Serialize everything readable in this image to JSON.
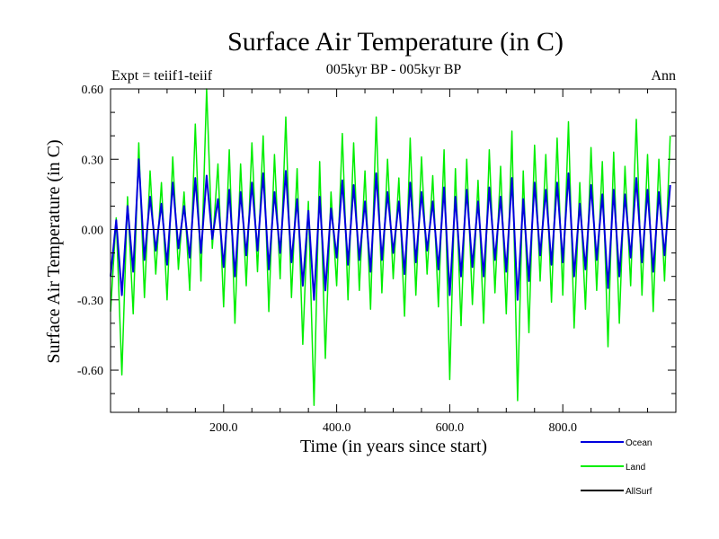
{
  "chart_data": {
    "type": "line",
    "title": "Surface Air Temperature (in C)",
    "subtitle": "005kyr BP - 005kyr BP",
    "left_note": "Expt = teiif1-teiif",
    "right_note": "Ann",
    "xlabel": "Time (in years since start)",
    "ylabel": "Surface Air Temperature (in C)",
    "xlim": [
      0,
      1000
    ],
    "ylim": [
      -0.78,
      0.6
    ],
    "x_ticks": [
      200,
      400,
      600,
      800
    ],
    "x_tick_labels": [
      "200.0",
      "400.0",
      "600.0",
      "800.0"
    ],
    "y_ticks": [
      0.6,
      0.3,
      0.0,
      -0.3,
      -0.6
    ],
    "y_tick_labels": [
      "0.60",
      "0.30",
      "0.00",
      "-0.30",
      "-0.60"
    ],
    "zero_line": true,
    "legend_position": "bottom-right, below plot",
    "series": [
      {
        "name": "Land",
        "color": "#00ee00",
        "x_start": 0,
        "x_step": 10,
        "values": [
          -0.35,
          0.05,
          -0.62,
          0.14,
          -0.36,
          0.37,
          -0.29,
          0.25,
          -0.19,
          0.2,
          -0.3,
          0.31,
          -0.17,
          0.16,
          -0.26,
          0.45,
          -0.22,
          0.6,
          -0.08,
          0.28,
          -0.33,
          0.34,
          -0.4,
          0.28,
          -0.24,
          0.37,
          -0.18,
          0.4,
          -0.35,
          0.32,
          -0.21,
          0.48,
          -0.29,
          0.26,
          -0.49,
          0.12,
          -0.75,
          0.29,
          -0.55,
          0.16,
          -0.24,
          0.41,
          -0.3,
          0.37,
          -0.26,
          0.25,
          -0.34,
          0.48,
          -0.27,
          0.3,
          -0.21,
          0.22,
          -0.37,
          0.39,
          -0.28,
          0.31,
          -0.19,
          0.23,
          -0.33,
          0.34,
          -0.64,
          0.26,
          -0.41,
          0.3,
          -0.32,
          0.21,
          -0.4,
          0.34,
          -0.27,
          0.27,
          -0.36,
          0.42,
          -0.73,
          0.25,
          -0.44,
          0.36,
          -0.22,
          0.32,
          -0.31,
          0.39,
          -0.28,
          0.46,
          -0.42,
          0.2,
          -0.34,
          0.35,
          -0.26,
          0.29,
          -0.5,
          0.33,
          -0.4,
          0.27,
          -0.24,
          0.47,
          -0.28,
          0.32,
          -0.35,
          0.3,
          -0.22,
          0.4
        ]
      },
      {
        "name": "Ocean",
        "color": "#0000dd",
        "x_start": 0,
        "x_step": 10,
        "values": [
          -0.2,
          0.04,
          -0.28,
          0.1,
          -0.18,
          0.3,
          -0.13,
          0.14,
          -0.09,
          0.11,
          -0.15,
          0.2,
          -0.08,
          0.1,
          -0.12,
          0.22,
          -0.1,
          0.23,
          -0.04,
          0.13,
          -0.16,
          0.17,
          -0.2,
          0.16,
          -0.11,
          0.2,
          -0.09,
          0.24,
          -0.17,
          0.16,
          -0.1,
          0.25,
          -0.14,
          0.13,
          -0.24,
          0.08,
          -0.3,
          0.14,
          -0.26,
          0.09,
          -0.12,
          0.21,
          -0.15,
          0.19,
          -0.13,
          0.12,
          -0.18,
          0.24,
          -0.13,
          0.16,
          -0.1,
          0.12,
          -0.19,
          0.2,
          -0.14,
          0.16,
          -0.09,
          0.12,
          -0.17,
          0.18,
          -0.28,
          0.14,
          -0.2,
          0.17,
          -0.16,
          0.12,
          -0.2,
          0.18,
          -0.13,
          0.14,
          -0.18,
          0.22,
          -0.3,
          0.13,
          -0.22,
          0.2,
          -0.11,
          0.17,
          -0.15,
          0.2,
          -0.14,
          0.24,
          -0.2,
          0.11,
          -0.17,
          0.19,
          -0.13,
          0.15,
          -0.25,
          0.17,
          -0.2,
          0.15,
          -0.12,
          0.22,
          -0.14,
          0.17,
          -0.18,
          0.16,
          -0.11,
          0.19
        ]
      },
      {
        "name": "AllSurf",
        "color": "#000000",
        "values": []
      }
    ],
    "legend_order": [
      "Ocean",
      "Land",
      "AllSurf"
    ]
  }
}
